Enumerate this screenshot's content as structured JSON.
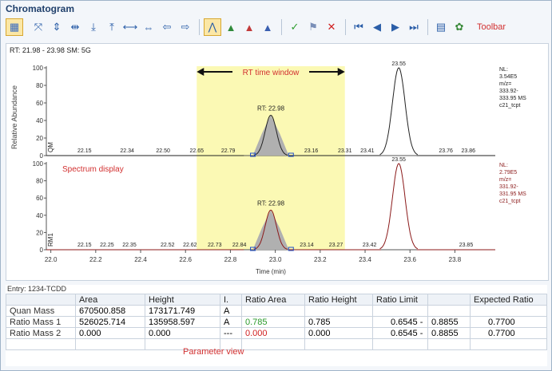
{
  "window": {
    "title": "Chromatogram"
  },
  "toolbar": {
    "label": "Toolbar",
    "icons": [
      "grid-view-icon",
      "zoom-fit-icon",
      "zoom-y-icon",
      "zoom-x-in-icon",
      "baseline-down-icon",
      "baseline-up-icon",
      "zoom-x-out-icon",
      "zoom-both-icon",
      "pan-left-icon",
      "pan-right-icon",
      "peak-detect-icon",
      "peak-add-icon",
      "peak-remove-icon",
      "peak-edit-icon",
      "check-icon",
      "flag-icon",
      "reject-icon",
      "first-icon",
      "prev-icon",
      "next-icon",
      "last-icon",
      "document-icon",
      "settings-icon"
    ]
  },
  "chromatogram": {
    "header": "RT: 21.98 - 23.98   SM: 5G",
    "ylabel": "Relative Abundance",
    "xlabel": "Time (min)",
    "rt_window_label": "RT time window",
    "spectrum_label": "Spectrum display",
    "yticks": [
      "0",
      "20",
      "40",
      "60",
      "80",
      "100"
    ],
    "xticks": [
      "22.0",
      "22.2",
      "22.4",
      "22.6",
      "22.8",
      "23.0",
      "23.2",
      "23.4",
      "23.6",
      "23.8"
    ],
    "top": {
      "trace_label": "QM",
      "nl": [
        "NL:",
        "3.54E5",
        "m/z=",
        "333.92-",
        "333.95 MS",
        "c21_tcpt"
      ],
      "peak_labels": [
        "22.15",
        "22.34",
        "22.50",
        "22.65",
        "22.79",
        "23.16",
        "23.31",
        "23.41",
        "23.55",
        "23.76",
        "23.86"
      ],
      "rt_label": "RT: 22.98",
      "color": "#222222"
    },
    "bottom": {
      "trace_label": "RM1",
      "nl": [
        "NL:",
        "2.79E5",
        "m/z=",
        "331.92-",
        "331.95 MS",
        "c21_tcpt"
      ],
      "peak_labels": [
        "22.15",
        "22.25",
        "22.35",
        "22.52",
        "22.62",
        "22.73",
        "22.84",
        "23.14",
        "23.27",
        "23.42",
        "23.55",
        "23.85"
      ],
      "rt_label": "RT: 22.98",
      "color": "#8b1a1a"
    }
  },
  "chart_data": [
    {
      "type": "line",
      "title": "",
      "xlabel": "",
      "ylabel": "Relative Abundance",
      "xlim": [
        21.98,
        23.98
      ],
      "ylim": [
        0,
        100
      ],
      "series": [
        {
          "name": "QM",
          "x": [
            21.98,
            22.9,
            22.94,
            22.98,
            23.02,
            23.06,
            23.44,
            23.5,
            23.55,
            23.6,
            23.66,
            23.98
          ],
          "y": [
            0,
            0,
            25,
            46,
            25,
            0,
            0,
            45,
            100,
            45,
            0,
            0
          ]
        }
      ],
      "highlight_range": [
        22.65,
        23.31
      ],
      "annotations": [
        "RT: 22.98",
        "22.15",
        "22.34",
        "22.50",
        "22.65",
        "22.79",
        "23.16",
        "23.31",
        "23.41",
        "23.55",
        "23.76",
        "23.86"
      ]
    },
    {
      "type": "line",
      "title": "",
      "xlabel": "Time (min)",
      "ylabel": "Relative Abundance",
      "xlim": [
        21.98,
        23.98
      ],
      "ylim": [
        0,
        100
      ],
      "series": [
        {
          "name": "RM1",
          "x": [
            21.98,
            22.9,
            22.94,
            22.98,
            23.02,
            23.06,
            23.44,
            23.5,
            23.55,
            23.6,
            23.66,
            23.98
          ],
          "y": [
            0,
            0,
            25,
            46,
            25,
            0,
            0,
            45,
            100,
            45,
            0,
            0
          ]
        }
      ],
      "highlight_range": [
        22.65,
        23.31
      ],
      "annotations": [
        "RT: 22.98",
        "22.15",
        "22.25",
        "22.35",
        "22.52",
        "22.62",
        "22.73",
        "22.84",
        "23.14",
        "23.27",
        "23.42",
        "23.55",
        "23.85"
      ]
    }
  ],
  "parameters": {
    "entry": "Entry: 1234-TCDD",
    "label": "Parameter view",
    "columns": [
      "",
      "Area",
      "Height",
      "I.",
      "Ratio Area",
      "Ratio Height",
      "Ratio Limit",
      "",
      "Expected Ratio"
    ],
    "rows": [
      {
        "name": "Quan Mass",
        "area": "670500.858",
        "height": "173171.749",
        "i": "A",
        "ratio_area": "",
        "ratio_height": "",
        "lim_lo": "",
        "lim_hi": "",
        "expected": ""
      },
      {
        "name": "Ratio Mass 1",
        "area": "526025.714",
        "height": "135958.597",
        "i": "A",
        "ratio_area": "0.785",
        "ratio_height": "0.785",
        "lim_lo": "0.6545 -",
        "lim_hi": "0.8855",
        "expected": "0.7700"
      },
      {
        "name": "Ratio Mass 2",
        "area": "0.000",
        "height": "0.000",
        "i": "---",
        "ratio_area": "0.000",
        "ratio_height": "0.000",
        "lim_lo": "0.6545 -",
        "lim_hi": "0.8855",
        "expected": "0.7700"
      },
      {
        "name": "",
        "area": "",
        "height": "",
        "i": "",
        "ratio_area": "",
        "ratio_height": "",
        "lim_lo": "",
        "lim_hi": "",
        "expected": ""
      }
    ]
  }
}
